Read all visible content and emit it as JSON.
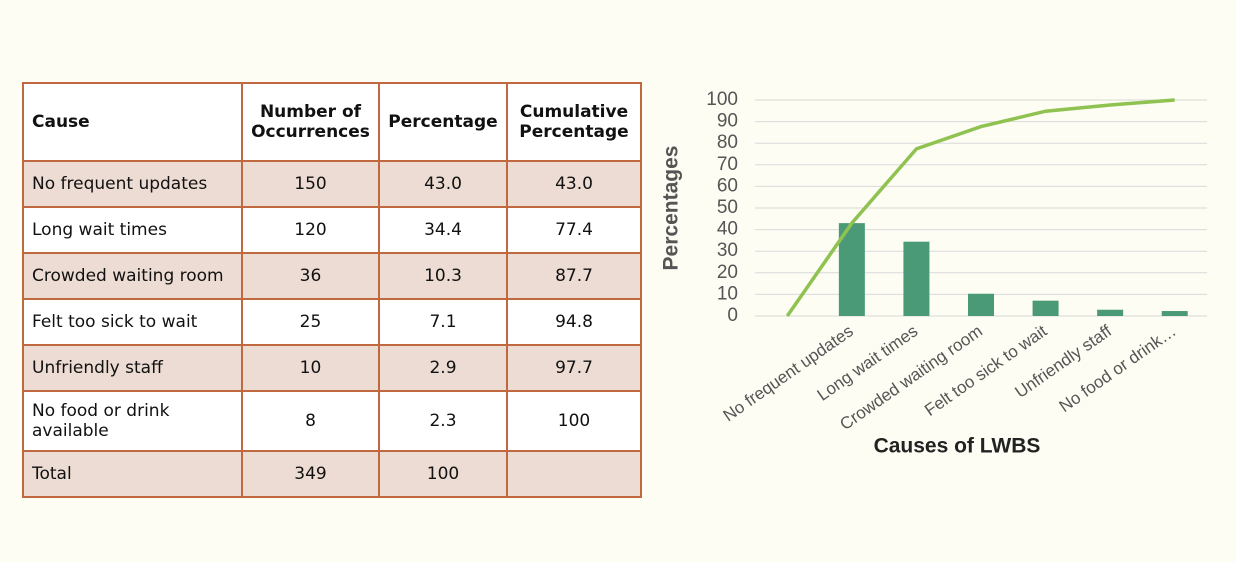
{
  "table": {
    "header": [
      "Cause",
      "Number of Occurrences",
      "Percentage",
      "Cumulative Percentage"
    ],
    "rows": [
      [
        "No frequent updates",
        "150",
        "43.0",
        "43.0"
      ],
      [
        "Long wait times",
        "120",
        "34.4",
        "77.4"
      ],
      [
        "Crowded waiting room",
        "36",
        "10.3",
        "87.7"
      ],
      [
        "Felt too sick to wait",
        "25",
        "7.1",
        "94.8"
      ],
      [
        "Unfriendly staff",
        "10",
        "2.9",
        "97.7"
      ],
      [
        "No food or drink available",
        "8",
        "2.3",
        "100"
      ],
      [
        "Total",
        "349",
        "100"
      ]
    ]
  },
  "chart_data": {
    "type": "bar",
    "xlabel": "Causes of LWBS",
    "ylabel": "Percentages",
    "categories": [
      null,
      "No frequent updates",
      "Long wait times",
      "Crowded waiting room",
      "Felt too sick to wait",
      "Unfriendly staff",
      "No food or drink…"
    ],
    "series": [
      {
        "type": "bar",
        "color": "#4a9a78",
        "values": [
          null,
          43,
          34.4,
          10.3,
          7.1,
          2.9,
          2.3
        ]
      },
      {
        "type": "line",
        "color": "#8fc250",
        "values": [
          0,
          43,
          77.4,
          87.7,
          94.8,
          97.7,
          100
        ]
      }
    ],
    "ylim": [
      0,
      100
    ],
    "yticks": [
      0,
      10,
      20,
      30,
      40,
      50,
      60,
      70,
      80,
      90,
      100
    ],
    "grid": true
  }
}
